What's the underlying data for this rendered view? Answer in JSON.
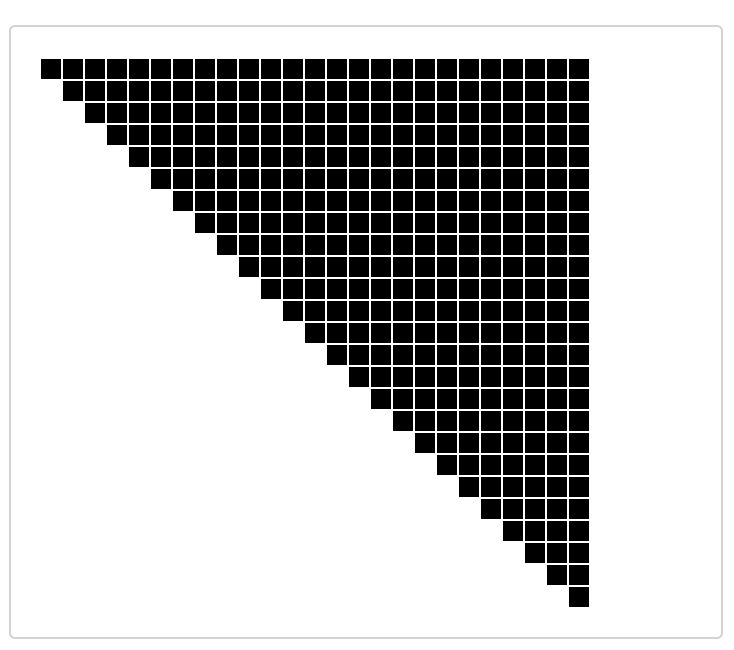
{
  "pattern": {
    "rows": 25,
    "cols": 25,
    "fill_color": "#000000",
    "gap_color": "#ffffff",
    "shape": "upper-triangle"
  }
}
